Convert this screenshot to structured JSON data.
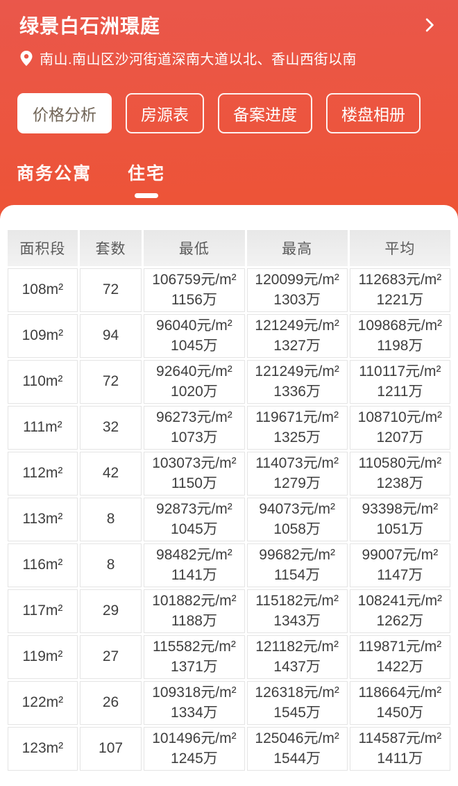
{
  "header": {
    "title": "绿景白石洲璟庭",
    "location": "南山.南山区沙河街道深南大道以北、香山西街以南"
  },
  "icons": {
    "location_pin": "map-pin",
    "chevron": "chevron-right"
  },
  "nav_tabs": [
    {
      "label": "价格分析",
      "active": true
    },
    {
      "label": "房源表",
      "active": false
    },
    {
      "label": "备案进度",
      "active": false
    },
    {
      "label": "楼盘相册",
      "active": false
    }
  ],
  "sub_tabs": [
    {
      "label": "商务公寓",
      "active": false
    },
    {
      "label": "住宅",
      "active": true
    }
  ],
  "table": {
    "columns": [
      "面积段",
      "套数",
      "最低",
      "最高",
      "平均"
    ],
    "rows": [
      {
        "area": "108m²",
        "count": "72",
        "min_price": "106759元/m²",
        "min_total": "1156万",
        "max_price": "120099元/m²",
        "max_total": "1303万",
        "avg_price": "112683元/m²",
        "avg_total": "1221万"
      },
      {
        "area": "109m²",
        "count": "94",
        "min_price": "96040元/m²",
        "min_total": "1045万",
        "max_price": "121249元/m²",
        "max_total": "1327万",
        "avg_price": "109868元/m²",
        "avg_total": "1198万"
      },
      {
        "area": "110m²",
        "count": "72",
        "min_price": "92640元/m²",
        "min_total": "1020万",
        "max_price": "121249元/m²",
        "max_total": "1336万",
        "avg_price": "110117元/m²",
        "avg_total": "1211万"
      },
      {
        "area": "111m²",
        "count": "32",
        "min_price": "96273元/m²",
        "min_total": "1073万",
        "max_price": "119671元/m²",
        "max_total": "1325万",
        "avg_price": "108710元/m²",
        "avg_total": "1207万"
      },
      {
        "area": "112m²",
        "count": "42",
        "min_price": "103073元/m²",
        "min_total": "1150万",
        "max_price": "114073元/m²",
        "max_total": "1279万",
        "avg_price": "110580元/m²",
        "avg_total": "1238万"
      },
      {
        "area": "113m²",
        "count": "8",
        "min_price": "92873元/m²",
        "min_total": "1045万",
        "max_price": "94073元/m²",
        "max_total": "1058万",
        "avg_price": "93398元/m²",
        "avg_total": "1051万"
      },
      {
        "area": "116m²",
        "count": "8",
        "min_price": "98482元/m²",
        "min_total": "1141万",
        "max_price": "99682元/m²",
        "max_total": "1154万",
        "avg_price": "99007元/m²",
        "avg_total": "1147万"
      },
      {
        "area": "117m²",
        "count": "29",
        "min_price": "101882元/m²",
        "min_total": "1188万",
        "max_price": "115182元/m²",
        "max_total": "1343万",
        "avg_price": "108241元/m²",
        "avg_total": "1262万"
      },
      {
        "area": "119m²",
        "count": "27",
        "min_price": "115582元/m²",
        "min_total": "1371万",
        "max_price": "121182元/m²",
        "max_total": "1437万",
        "avg_price": "119871元/m²",
        "avg_total": "1422万"
      },
      {
        "area": "122m²",
        "count": "26",
        "min_price": "109318元/m²",
        "min_total": "1334万",
        "max_price": "126318元/m²",
        "max_total": "1545万",
        "avg_price": "118664元/m²",
        "avg_total": "1450万"
      },
      {
        "area": "123m²",
        "count": "107",
        "min_price": "101496元/m²",
        "min_total": "1245万",
        "max_price": "125046元/m²",
        "max_total": "1544万",
        "avg_price": "114587元/m²",
        "avg_total": "1411万"
      }
    ]
  },
  "colors": {
    "gradient_top": "#ea574b",
    "gradient_bottom": "#f85c0d",
    "active_tab_text": "#716557",
    "table_header_bg": "#ececec",
    "table_border": "#e4e4e4",
    "cell_text": "#3e3e3e",
    "white": "#ffffff"
  }
}
